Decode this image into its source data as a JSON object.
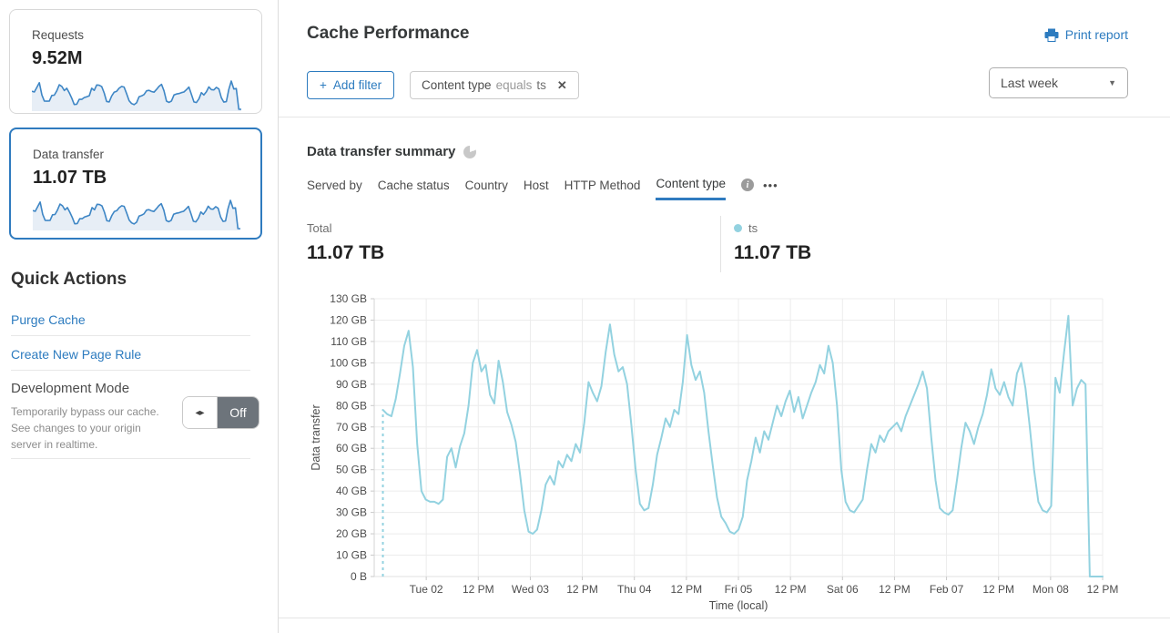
{
  "sidebar": {
    "cards": [
      {
        "label": "Requests",
        "value": "9.52M",
        "selected": false
      },
      {
        "label": "Data transfer",
        "value": "11.07 TB",
        "selected": true
      }
    ],
    "quick_actions": {
      "title": "Quick Actions",
      "links": [
        "Purge Cache",
        "Create New Page Rule"
      ],
      "development_mode": {
        "label": "Development Mode",
        "description": "Temporarily bypass our cache. See changes to your origin server in realtime.",
        "toggle_state": "Off"
      }
    }
  },
  "header": {
    "title": "Cache Performance",
    "print_report": "Print report",
    "add_filter_label": "Add filter",
    "time_range": "Last week"
  },
  "filters": [
    {
      "field": "Content type",
      "operator": "equals",
      "value": "ts"
    }
  ],
  "summary": {
    "title": "Data transfer summary",
    "tabs": [
      "Served by",
      "Cache status",
      "Country",
      "Host",
      "HTTP Method",
      "Content type"
    ],
    "active_tab": "Content type",
    "total_label": "Total",
    "total_value": "11.07 TB",
    "legend": {
      "name": "ts",
      "value": "11.07 TB",
      "color": "#93d2e0"
    }
  },
  "icons": {
    "plus": "+",
    "close": "✕",
    "caret": "▼",
    "dots": "•••",
    "toggle_arrows": "◂▸",
    "info": "i"
  },
  "colors": {
    "accent_blue": "#2c7bbf",
    "tab_underline": "#2f7bbf",
    "chart_line": "#93d2e0",
    "sparkline": "#3e86c5",
    "sparkline_fill": "#e7eef6",
    "grid": "#ececec",
    "toggle_off": "#6d747b"
  },
  "chart_data": {
    "type": "line",
    "title": "Data transfer summary",
    "series_name": "ts",
    "xlabel": "Time (local)",
    "ylabel": "Data transfer",
    "ylim": [
      0,
      130
    ],
    "unit": "GB",
    "grid": true,
    "start_dashed": true,
    "start_hour": 2,
    "total_hours": 168,
    "y_tick_labels": [
      "0 B",
      "10 GB",
      "20 GB",
      "30 GB",
      "40 GB",
      "50 GB",
      "60 GB",
      "70 GB",
      "80 GB",
      "90 GB",
      "100 GB",
      "110 GB",
      "120 GB",
      "130 GB"
    ],
    "x_labels": [
      "Tue 02",
      "12 PM",
      "Wed 03",
      "12 PM",
      "Thu 04",
      "12 PM",
      "Fri 05",
      "12 PM",
      "Sat 06",
      "12 PM",
      "Feb 07",
      "12 PM",
      "Mon 08",
      "12 PM"
    ],
    "values_gb": [
      78,
      76,
      75,
      83,
      95,
      108,
      115,
      98,
      62,
      40,
      36,
      35,
      35,
      34,
      36,
      56,
      60,
      51,
      61,
      67,
      80,
      100,
      106,
      96,
      99,
      85,
      81,
      101,
      91,
      77,
      71,
      63,
      48,
      31,
      21,
      20,
      22,
      31,
      43,
      47,
      43,
      54,
      51,
      57,
      54,
      62,
      58,
      72,
      91,
      86,
      82,
      89,
      105,
      118,
      104,
      96,
      98,
      90,
      71,
      50,
      34,
      31,
      32,
      43,
      57,
      65,
      74,
      70,
      78,
      76,
      91,
      113,
      99,
      92,
      96,
      86,
      68,
      52,
      37,
      28,
      25,
      21,
      20,
      22,
      28,
      45,
      54,
      65,
      58,
      68,
      64,
      72,
      80,
      75,
      82,
      87,
      77,
      84,
      74,
      80,
      86,
      91,
      99,
      95,
      108,
      100,
      80,
      50,
      35,
      31,
      30,
      33,
      36,
      50,
      62,
      58,
      66,
      63,
      68,
      70,
      72,
      68,
      75,
      80,
      85,
      90,
      96,
      88,
      65,
      45,
      32,
      30,
      29,
      31,
      45,
      60,
      72,
      68,
      62,
      70,
      76,
      85,
      97,
      88,
      85,
      91,
      84,
      80,
      95,
      100,
      88,
      70,
      50,
      35,
      31,
      30,
      33,
      93,
      86,
      105,
      122,
      80,
      88,
      92,
      90,
      0,
      0,
      0,
      0
    ]
  }
}
